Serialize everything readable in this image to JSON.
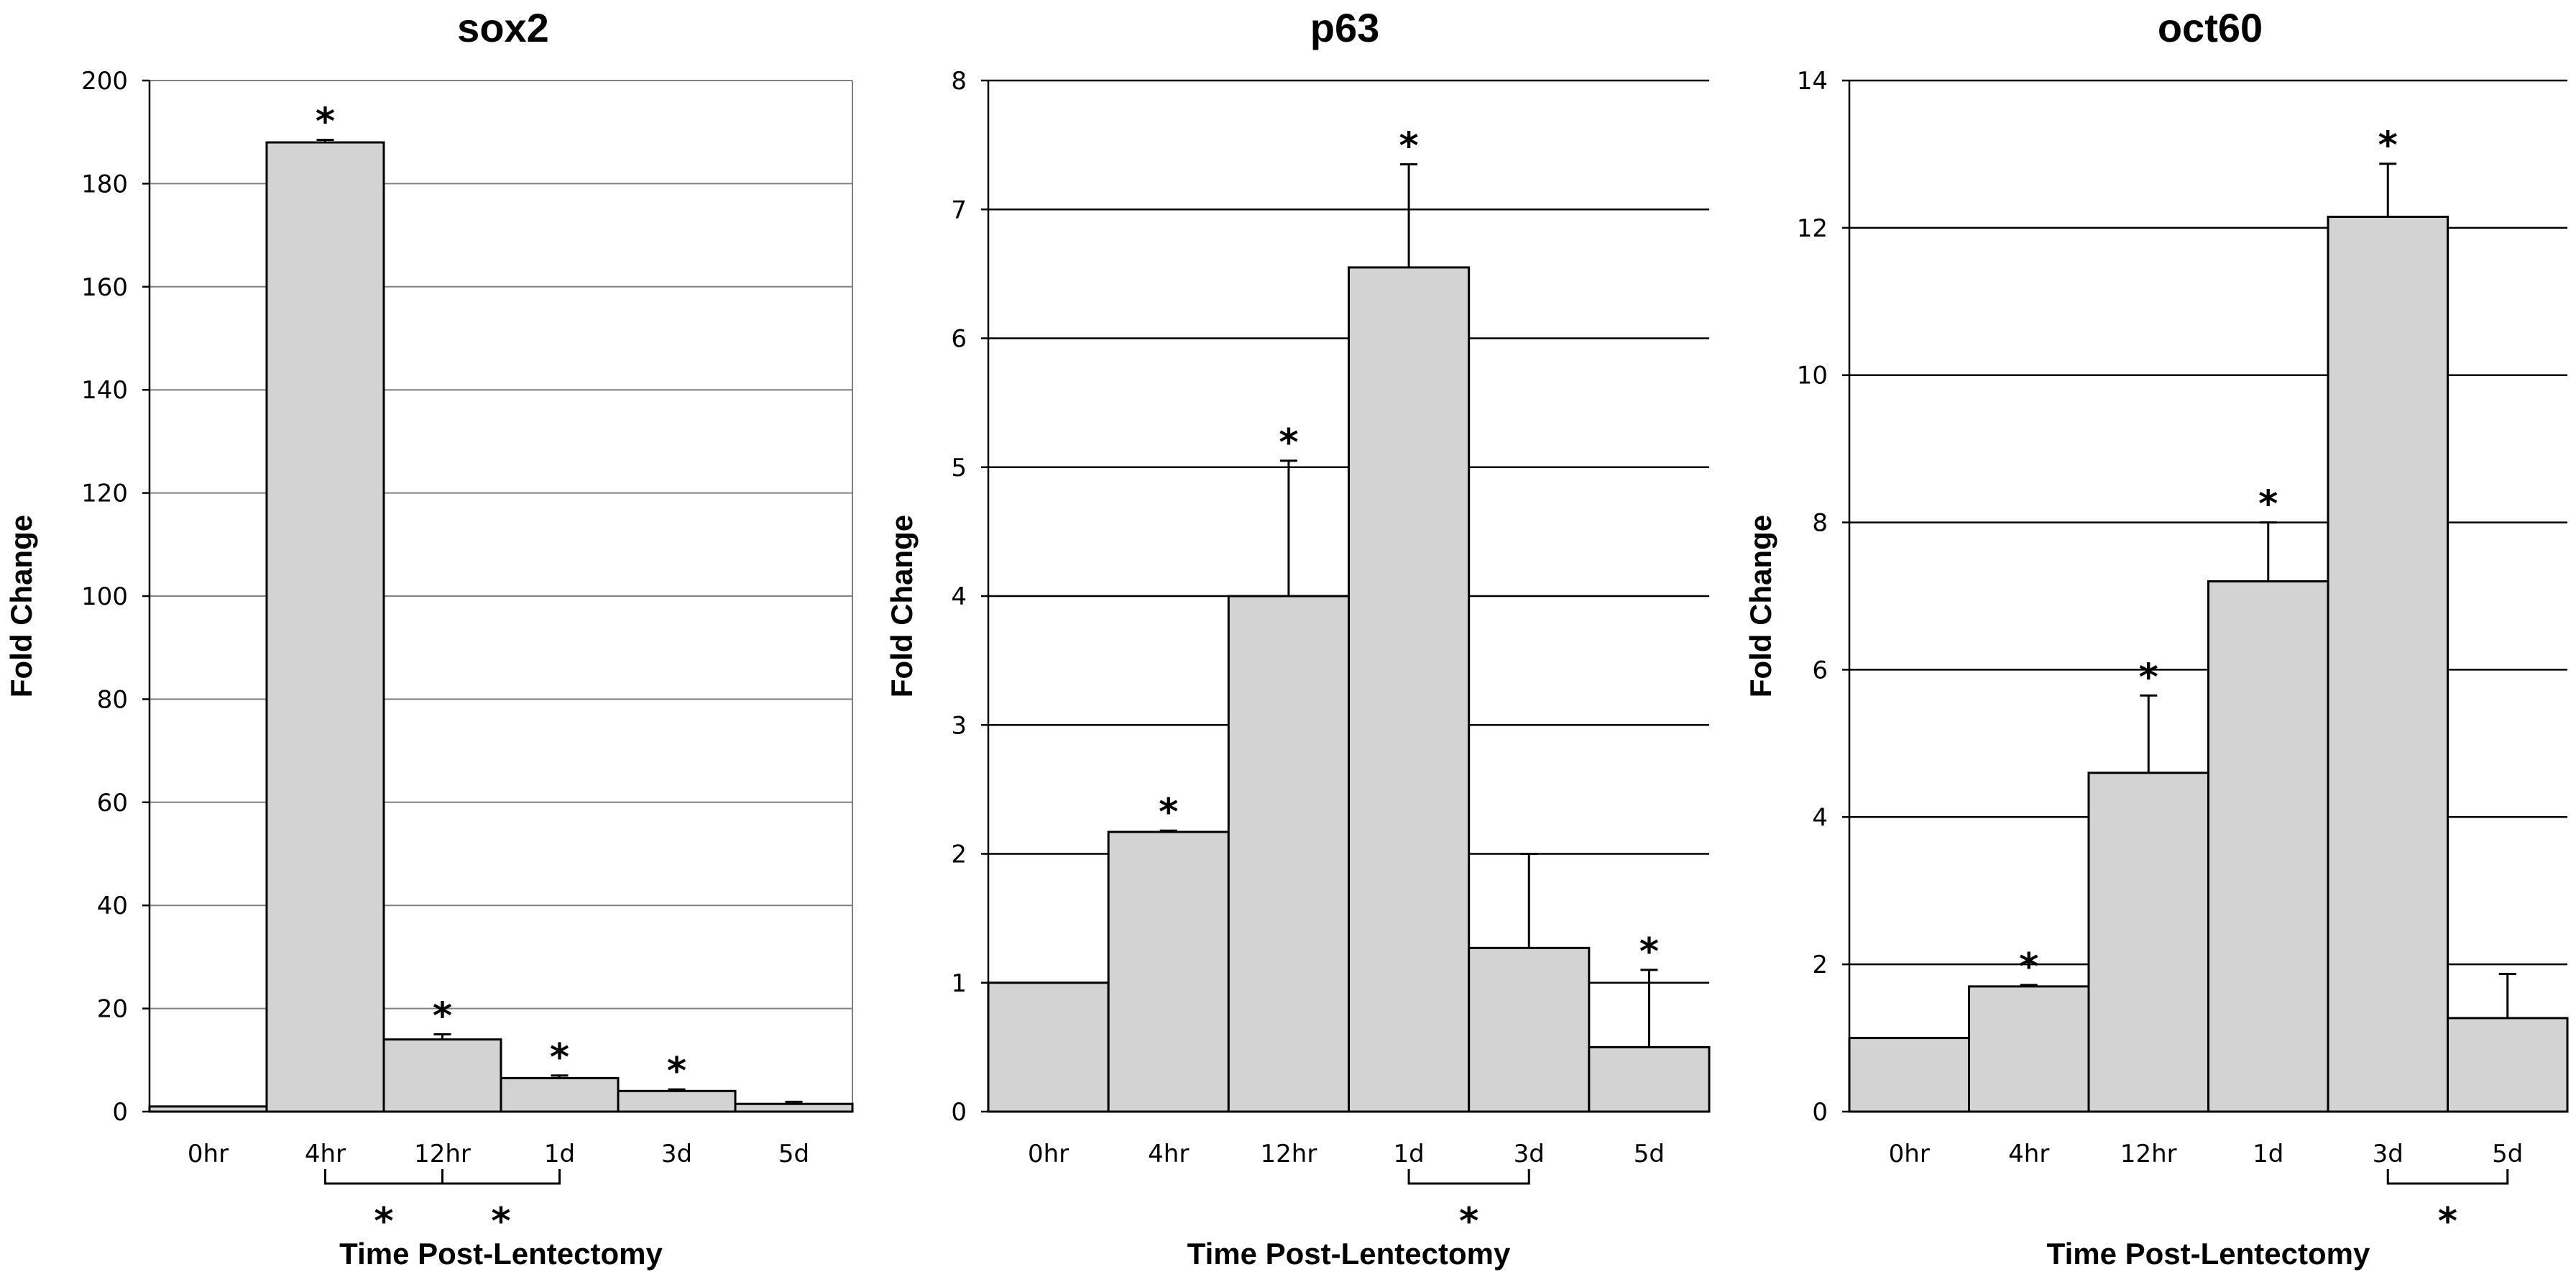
{
  "chart_data": [
    {
      "type": "bar",
      "title": "sox2",
      "xlabel": "Time Post-Lentectomy",
      "ylabel": "Fold Change",
      "ylim": [
        0,
        200
      ],
      "yticks": [
        0,
        20,
        40,
        60,
        80,
        100,
        120,
        140,
        160,
        180,
        200
      ],
      "yticklabels": [
        "0",
        "20",
        "40",
        "60",
        "80",
        "100",
        "120",
        "140",
        "160",
        "180",
        "200"
      ],
      "grid": "light",
      "categories": [
        "0hr",
        "4hr",
        "12hr",
        "1d",
        "3d",
        "5d"
      ],
      "values": [
        1,
        188,
        14,
        6.5,
        4,
        1.5
      ],
      "errors": [
        0,
        0.5,
        1,
        0.5,
        0.3,
        0.4
      ],
      "significant": [
        false,
        true,
        true,
        true,
        true,
        false
      ],
      "brackets": [
        {
          "from": 1,
          "to": 2,
          "label": "*"
        },
        {
          "from": 2,
          "to": 3,
          "label": "*"
        }
      ]
    },
    {
      "type": "bar",
      "title": "p63",
      "xlabel": "Time Post-Lentectomy",
      "ylabel": "Fold Change",
      "ylim": [
        0,
        8
      ],
      "yticks": [
        0,
        1,
        2,
        3,
        4,
        5,
        6,
        7,
        8
      ],
      "yticklabels": [
        "0",
        "1",
        "2",
        "3",
        "4",
        "5",
        "6",
        "7",
        "8"
      ],
      "grid": "dark",
      "categories": [
        "0hr",
        "4hr",
        "12hr",
        "1d",
        "3d",
        "5d"
      ],
      "values": [
        1,
        2.17,
        4,
        6.55,
        1.27,
        0.5
      ],
      "errors": [
        0,
        0.01,
        1.05,
        0.8,
        0.73,
        0.6
      ],
      "significant": [
        false,
        true,
        true,
        true,
        false,
        true
      ],
      "brackets": [
        {
          "from": 3,
          "to": 4,
          "label": "*"
        }
      ]
    },
    {
      "type": "bar",
      "title": "oct60",
      "xlabel": "Time Post-Lentectomy",
      "ylabel": "Fold Change",
      "ylim": [
        0,
        14
      ],
      "yticks": [
        0,
        2,
        4,
        6,
        8,
        10,
        12,
        14
      ],
      "yticklabels": [
        "0",
        "2",
        "4",
        "6",
        "8",
        "10",
        "12",
        "14"
      ],
      "grid": "dark",
      "categories": [
        "0hr",
        "4hr",
        "12hr",
        "1d",
        "3d",
        "5d"
      ],
      "values": [
        1,
        1.7,
        4.6,
        7.2,
        12.15,
        1.27
      ],
      "errors": [
        0,
        0.02,
        1.05,
        0.8,
        0.72,
        0.6
      ],
      "significant": [
        false,
        true,
        true,
        true,
        true,
        false
      ],
      "brackets": [
        {
          "from": 4,
          "to": 5,
          "label": "*"
        }
      ]
    }
  ]
}
